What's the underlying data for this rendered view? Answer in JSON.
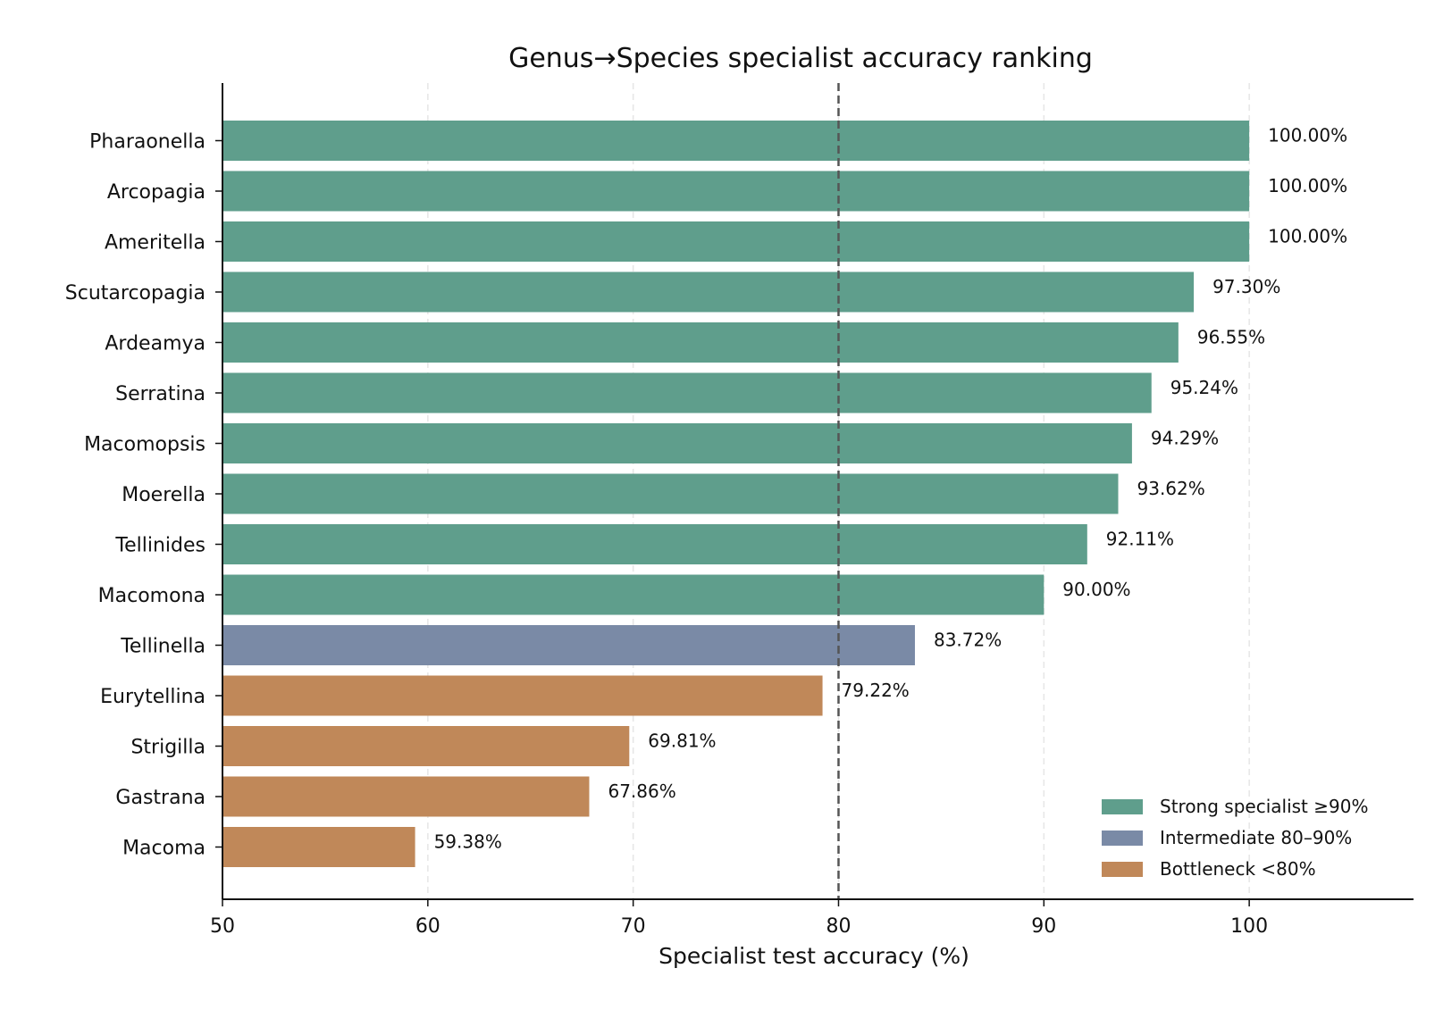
{
  "chart_data": {
    "type": "bar",
    "orientation": "horizontal",
    "title": "Genus→Species specialist accuracy ranking",
    "xlabel": "Specialist test accuracy (%)",
    "ylabel": "",
    "xlim": [
      50,
      108
    ],
    "xticks": [
      "50",
      "60",
      "70",
      "80",
      "90",
      "100"
    ],
    "grid": "x-axis dashed",
    "reference_line": 80,
    "legend_position": "bottom-right",
    "categories": [
      "Pharaonella",
      "Arcopagia",
      "Ameritella",
      "Scutarcopagia",
      "Ardeamya",
      "Serratina",
      "Macomopsis",
      "Moerella",
      "Tellinides",
      "Macomona",
      "Tellinella",
      "Eurytellina",
      "Strigilla",
      "Gastrana",
      "Macoma"
    ],
    "values": [
      100.0,
      100.0,
      100.0,
      97.3,
      96.55,
      95.24,
      94.29,
      93.62,
      92.11,
      90.0,
      83.72,
      79.22,
      69.81,
      67.86,
      59.38
    ],
    "data_labels": [
      "100.00%",
      "100.00%",
      "100.00%",
      "97.30%",
      "96.55%",
      "95.24%",
      "94.29%",
      "93.62%",
      "92.11%",
      "90.00%",
      "83.72%",
      "79.22%",
      "69.81%",
      "67.86%",
      "59.38%"
    ],
    "classes": [
      "strong",
      "strong",
      "strong",
      "strong",
      "strong",
      "strong",
      "strong",
      "strong",
      "strong",
      "strong",
      "intermediate",
      "bottleneck",
      "bottleneck",
      "bottleneck",
      "bottleneck"
    ],
    "legend": [
      {
        "key": "strong",
        "label": "Strong specialist ≥90%",
        "color": "#5f9e8c"
      },
      {
        "key": "intermediate",
        "label": "Intermediate 80–90%",
        "color": "#7a8aa6"
      },
      {
        "key": "bottleneck",
        "label": "Bottleneck <80%",
        "color": "#c08859"
      }
    ],
    "colors": {
      "axis": "#111111",
      "grid": "#e6e6e6",
      "reference_line": "#555555"
    }
  }
}
